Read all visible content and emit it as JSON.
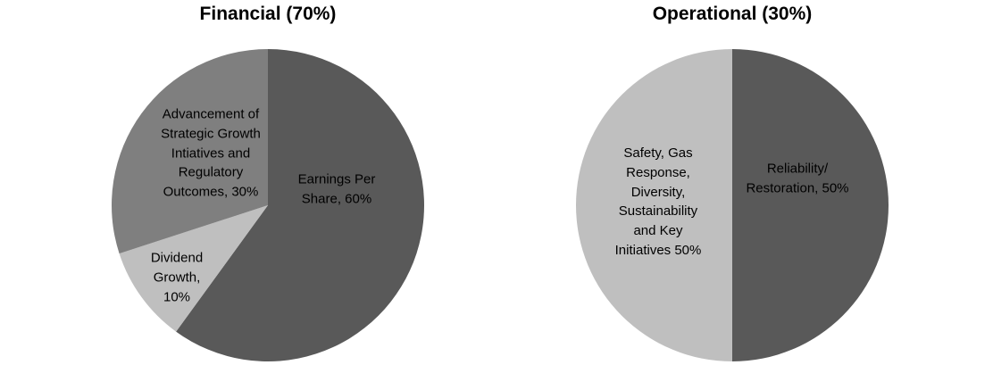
{
  "chart_data": [
    {
      "type": "pie",
      "title": "Financial (70%)",
      "start_angle_deg": -90,
      "direction": "clockwise",
      "legend": "none",
      "slices": [
        {
          "label": "Earnings Per Share",
          "value": 60,
          "color": "#595959",
          "display": "Earnings Per\nShare, 60%"
        },
        {
          "label": "Dividend Growth",
          "value": 10,
          "color": "#bfbfbf",
          "display": "Dividend\nGrowth,\n10%"
        },
        {
          "label": "Advancement of Strategic Growth Intiatives and Regulatory Outcomes",
          "value": 30,
          "color": "#7f7f7f",
          "display": "Advancement of\nStrategic Growth\nIntiatives and\nRegulatory\nOutcomes, 30%"
        }
      ]
    },
    {
      "type": "pie",
      "title": "Operational (30%)",
      "start_angle_deg": -90,
      "direction": "clockwise",
      "legend": "none",
      "slices": [
        {
          "label": "Reliability/Restoration",
          "value": 50,
          "color": "#595959",
          "display": "Reliability/\nRestoration, 50%"
        },
        {
          "label": "Safety, Gas Response, Diversity, Sustainability and Key Initiatives",
          "value": 50,
          "color": "#bfbfbf",
          "display": "Safety, Gas\nResponse,\nDiversity,\nSustainability\nand Key\nInitiatives 50%"
        }
      ]
    }
  ]
}
